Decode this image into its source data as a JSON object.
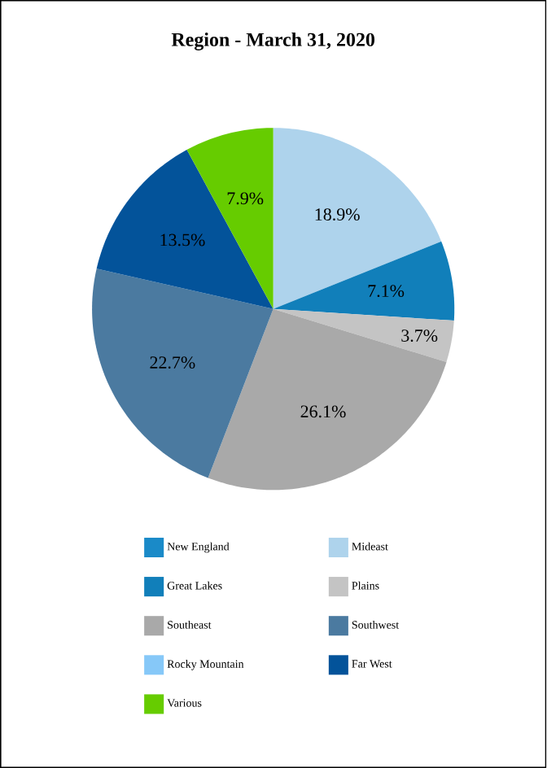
{
  "chart_data": {
    "type": "pie",
    "title": "Region - March 31, 2020",
    "categories": [
      "New England",
      "Mideast",
      "Great Lakes",
      "Plains",
      "Southeast",
      "Southwest",
      "Rocky Mountain",
      "Far West",
      "Various"
    ],
    "values": [
      0,
      18.9,
      7.1,
      3.7,
      26.1,
      22.7,
      0,
      13.5,
      7.9
    ],
    "value_labels": [
      null,
      "18.9%",
      "7.1%",
      "3.7%",
      "26.1%",
      "22.7%",
      null,
      "13.5%",
      "7.9%"
    ],
    "colors": [
      "#1a8ac8",
      "#aed3ec",
      "#117fba",
      "#c4c4c4",
      "#a9a9a9",
      "#4b7aa0",
      "#86c8f8",
      "#03539a",
      "#66cc00"
    ],
    "legend": "bottom"
  }
}
